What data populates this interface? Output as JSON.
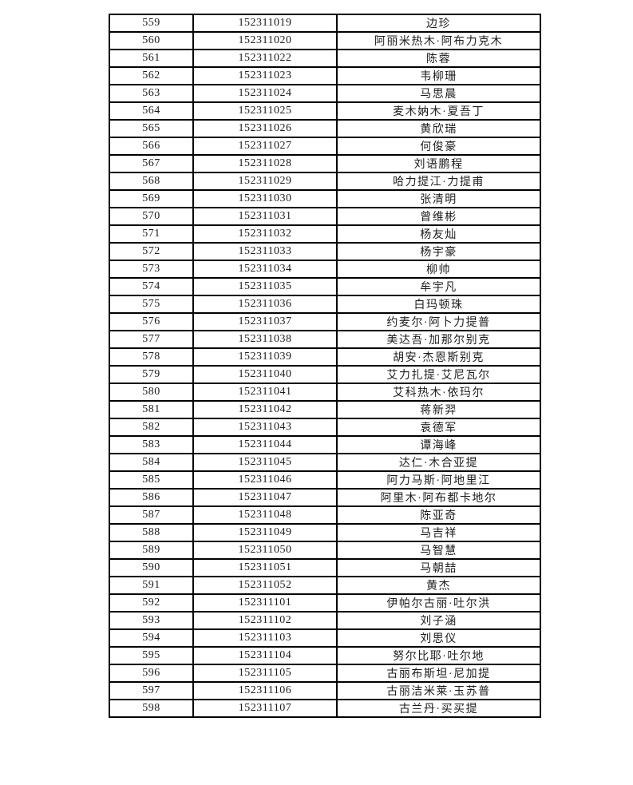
{
  "colors": {
    "background": "#ffffff",
    "border": "#000000",
    "text": "#1c1c1c"
  },
  "table": {
    "columns": [
      "index",
      "student_id",
      "name"
    ],
    "rows": [
      {
        "index": "559",
        "id": "152311019",
        "name": "边珍"
      },
      {
        "index": "560",
        "id": "152311020",
        "name": "阿丽米热木·阿布力克木"
      },
      {
        "index": "561",
        "id": "152311022",
        "name": "陈蓉"
      },
      {
        "index": "562",
        "id": "152311023",
        "name": "韦柳珊"
      },
      {
        "index": "563",
        "id": "152311024",
        "name": "马思晨"
      },
      {
        "index": "564",
        "id": "152311025",
        "name": "麦木妠木·夏吾丁"
      },
      {
        "index": "565",
        "id": "152311026",
        "name": "黄欣瑞"
      },
      {
        "index": "566",
        "id": "152311027",
        "name": "何俊豪"
      },
      {
        "index": "567",
        "id": "152311028",
        "name": "刘语鹏程"
      },
      {
        "index": "568",
        "id": "152311029",
        "name": "哈力提江·力提甫"
      },
      {
        "index": "569",
        "id": "152311030",
        "name": "张清明"
      },
      {
        "index": "570",
        "id": "152311031",
        "name": "曾维彬"
      },
      {
        "index": "571",
        "id": "152311032",
        "name": "杨友灿"
      },
      {
        "index": "572",
        "id": "152311033",
        "name": "杨宇豪"
      },
      {
        "index": "573",
        "id": "152311034",
        "name": "柳帅"
      },
      {
        "index": "574",
        "id": "152311035",
        "name": "牟宇凡"
      },
      {
        "index": "575",
        "id": "152311036",
        "name": "白玛顿珠"
      },
      {
        "index": "576",
        "id": "152311037",
        "name": "约麦尔·阿卜力提普"
      },
      {
        "index": "577",
        "id": "152311038",
        "name": "美达吾·加那尔别克"
      },
      {
        "index": "578",
        "id": "152311039",
        "name": "胡安·杰恩斯别克"
      },
      {
        "index": "579",
        "id": "152311040",
        "name": "艾力扎提·艾尼瓦尔"
      },
      {
        "index": "580",
        "id": "152311041",
        "name": "艾科热木·依玛尔"
      },
      {
        "index": "581",
        "id": "152311042",
        "name": "蒋新羿"
      },
      {
        "index": "582",
        "id": "152311043",
        "name": "袁德军"
      },
      {
        "index": "583",
        "id": "152311044",
        "name": "谭海峰"
      },
      {
        "index": "584",
        "id": "152311045",
        "name": "达仁·木合亚提"
      },
      {
        "index": "585",
        "id": "152311046",
        "name": "阿力马斯·阿地里江"
      },
      {
        "index": "586",
        "id": "152311047",
        "name": "阿里木·阿布都卡地尔"
      },
      {
        "index": "587",
        "id": "152311048",
        "name": "陈亚奇"
      },
      {
        "index": "588",
        "id": "152311049",
        "name": "马吉祥"
      },
      {
        "index": "589",
        "id": "152311050",
        "name": "马智慧"
      },
      {
        "index": "590",
        "id": "152311051",
        "name": "马朝喆"
      },
      {
        "index": "591",
        "id": "152311052",
        "name": "黄杰"
      },
      {
        "index": "592",
        "id": "152311101",
        "name": "伊帕尔古丽·吐尔洪"
      },
      {
        "index": "593",
        "id": "152311102",
        "name": "刘子涵"
      },
      {
        "index": "594",
        "id": "152311103",
        "name": "刘思仪"
      },
      {
        "index": "595",
        "id": "152311104",
        "name": "努尔比耶·吐尔地"
      },
      {
        "index": "596",
        "id": "152311105",
        "name": "古丽布斯坦·尼加提"
      },
      {
        "index": "597",
        "id": "152311106",
        "name": "古丽洁米莱·玉苏普"
      },
      {
        "index": "598",
        "id": "152311107",
        "name": "古兰丹·买买提"
      }
    ]
  }
}
